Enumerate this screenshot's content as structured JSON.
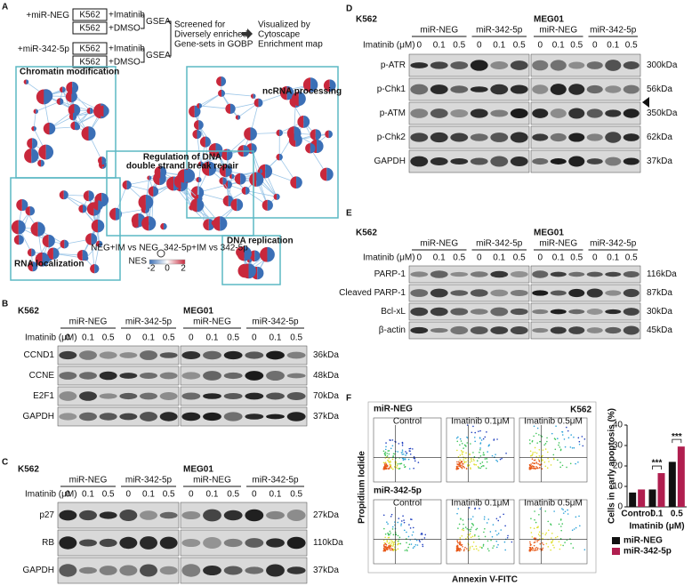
{
  "panels": {
    "A": {
      "letter": "A",
      "flow": {
        "conditions": [
          "+miR-NEG",
          "+miR-342-5p"
        ],
        "cell_line": "K562",
        "treatments": [
          "+Imatinib",
          "+DMSO"
        ],
        "method": "GSEA",
        "step1": [
          "Screened for",
          "Diversely enriched",
          "Gene-sets in GOBP"
        ],
        "step2": [
          "Visualized by",
          "Cytoscape",
          "Enrichment map"
        ]
      },
      "clusters": [
        [
          "Chromatin modification"
        ],
        [
          "ncRNA processing"
        ],
        [
          "Regulation of DNA",
          "double strand break repair"
        ],
        [
          "RNA localization"
        ],
        [
          "DNA replication"
        ]
      ],
      "legend": {
        "comparisons": [
          "NEG+IM vs NEG",
          "342-5p+IM vs 342-5p"
        ],
        "scale_label": "NES",
        "ticks": [
          -2,
          0,
          2
        ]
      }
    },
    "B": {
      "letter": "B",
      "cell_lines": [
        "K562",
        "MEG01"
      ],
      "groups": [
        "miR-NEG",
        "miR-342-5p"
      ],
      "dose_label": "Imatinib (μM)",
      "doses": [
        "0",
        "0.1",
        "0.5"
      ],
      "rows": [
        {
          "protein": "CCND1",
          "size": "36kDa"
        },
        {
          "protein": "CCNE",
          "size": "48kDa"
        },
        {
          "protein": "E2F1",
          "size": "70kDa"
        },
        {
          "protein": "GAPDH",
          "size": "37kDa"
        }
      ]
    },
    "C": {
      "letter": "C",
      "cell_lines": [
        "K562",
        "MEG01"
      ],
      "groups": [
        "miR-NEG",
        "miR-342-5p"
      ],
      "dose_label": "Imatinib (μM)",
      "doses": [
        "0",
        "0.1",
        "0.5"
      ],
      "rows": [
        {
          "protein": "p27",
          "size": "27kDa"
        },
        {
          "protein": "RB",
          "size": "110kDa"
        },
        {
          "protein": "GAPDH",
          "size": "37kDa"
        }
      ]
    },
    "D": {
      "letter": "D",
      "cell_lines": [
        "K562",
        "MEG01"
      ],
      "groups": [
        "miR-NEG",
        "miR-342-5p"
      ],
      "dose_label": "Imatinib (μM)",
      "doses": [
        "0",
        "0.1",
        "0.5"
      ],
      "rows": [
        {
          "protein": "p-ATR",
          "size": "300kDa"
        },
        {
          "protein": "p-Chk1",
          "size": "56kDa"
        },
        {
          "protein": "p-ATM",
          "size": "350kDa"
        },
        {
          "protein": "p-Chk2",
          "size": "62kDa"
        },
        {
          "protein": "GAPDH",
          "size": "37kDa"
        }
      ]
    },
    "E": {
      "letter": "E",
      "cell_lines": [
        "K562",
        "MEG01"
      ],
      "groups": [
        "miR-NEG",
        "miR-342-5p"
      ],
      "dose_label": "Imatinib (μM)",
      "doses": [
        "0",
        "0.1",
        "0.5"
      ],
      "rows": [
        {
          "protein": "PARP-1",
          "size": "116kDa"
        },
        {
          "protein": "Cleaved PARP-1",
          "size": "87kDa"
        },
        {
          "protein": "Bcl-xL",
          "size": "30kDa"
        },
        {
          "protein": "β-actin",
          "size": "45kDa"
        }
      ]
    },
    "F": {
      "letter": "F",
      "flow": {
        "groups": [
          "miR-NEG",
          "miR-342-5p"
        ],
        "cell_line": "K562",
        "conditions": [
          "Control",
          "Imatinib 0.1μM",
          "Imatinib 0.5μM"
        ],
        "y_label": "Propidium Iodide",
        "x_label": "Annexin V-FITC"
      }
    }
  },
  "chart_data": {
    "type": "bar",
    "y_label": "Cells in early apoptosis (%)",
    "x_label": "Imatinib (μM)",
    "categories": [
      "Control",
      "0.1",
      "0.5"
    ],
    "series": [
      {
        "name": "miR-NEG",
        "color": "#111111",
        "values": [
          7,
          8.5,
          22
        ]
      },
      {
        "name": "miR-342-5p",
        "color": "#b01e4f",
        "values": [
          8.5,
          16.5,
          29.5
        ]
      }
    ],
    "ylim": [
      0,
      40
    ],
    "yticks": [
      0,
      10,
      20,
      30,
      40
    ],
    "annotations": [
      "***",
      "***"
    ]
  }
}
